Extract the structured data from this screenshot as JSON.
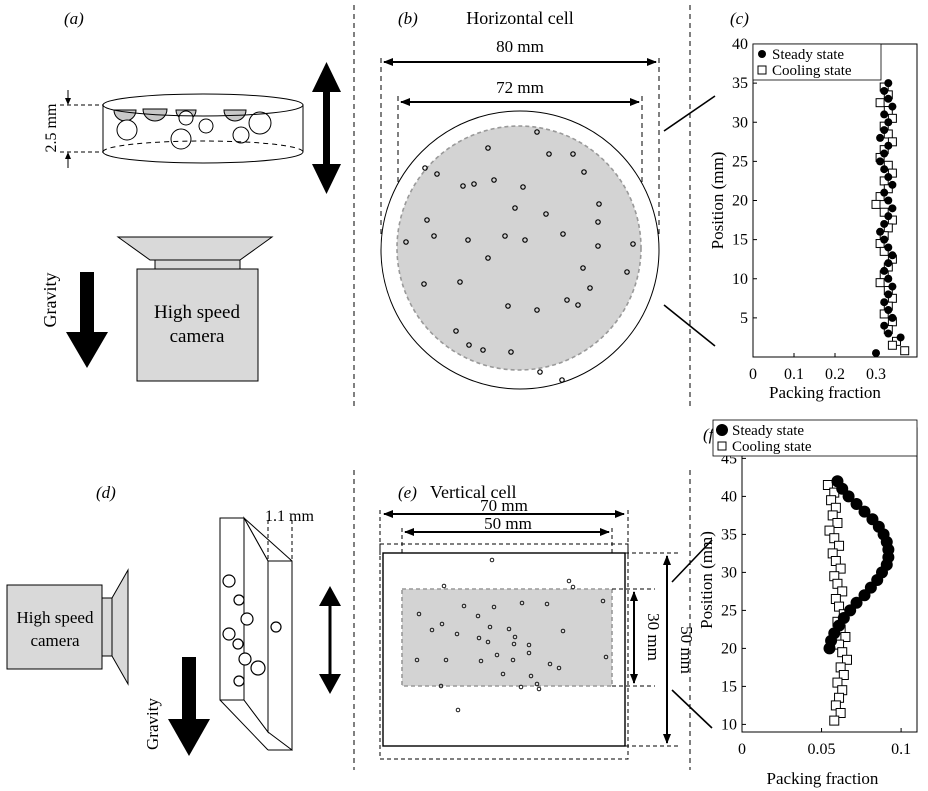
{
  "panels": {
    "a": {
      "label": "(a)",
      "thickness": "2.5 mm",
      "gravity": "Gravity",
      "camera": [
        "High speed",
        "camera"
      ]
    },
    "b": {
      "label": "(b)",
      "title": "Horizontal cell",
      "outer_dim": "80 mm",
      "inner_dim": "72 mm"
    },
    "c": {
      "label": "(c)"
    },
    "d": {
      "label": "(d)",
      "thickness": "1.1 mm",
      "gravity": "Gravity",
      "camera": [
        "High speed",
        "camera"
      ]
    },
    "e": {
      "label": "(e)",
      "title": "Vertical cell",
      "outer_width": "70 mm",
      "inner_width": "50 mm",
      "outer_height": "50 mm",
      "inner_height": "30 mm"
    },
    "f": {
      "label": "(f)"
    }
  },
  "colors": {
    "fill_gray": "#d3d3d3",
    "camera_gray": "#d9d9d9",
    "dash_gray": "#999999"
  },
  "chart_data": [
    {
      "type": "scatter",
      "panel": "c",
      "xlabel": "Packing fraction",
      "ylabel": "Position (mm)",
      "xlim": [
        0,
        0.4
      ],
      "ylim": [
        0,
        40
      ],
      "xticks": [
        "0",
        "0.1",
        "0.2",
        "0.3"
      ],
      "yticks": [
        "5",
        "10",
        "15",
        "20",
        "25",
        "30",
        "35",
        "40"
      ],
      "legend": "top-right",
      "series": [
        {
          "name": "Steady state",
          "marker": "filled-circle",
          "x": [
            0.33,
            0.32,
            0.33,
            0.34,
            0.32,
            0.33,
            0.32,
            0.31,
            0.33,
            0.32,
            0.31,
            0.32,
            0.33,
            0.34,
            0.32,
            0.33,
            0.34,
            0.33,
            0.32,
            0.31,
            0.32,
            0.33,
            0.34,
            0.33,
            0.32,
            0.33,
            0.34,
            0.33,
            0.32,
            0.33,
            0.34,
            0.32,
            0.33,
            0.3,
            0.36
          ],
          "y": [
            35,
            34,
            33,
            32,
            31,
            30,
            29,
            28,
            27,
            26,
            25,
            24,
            23,
            22,
            21,
            20,
            19,
            18,
            17,
            16,
            15,
            14,
            13,
            12,
            11,
            10,
            9,
            8,
            7,
            6,
            5,
            4,
            3,
            0.5,
            2.5
          ]
        },
        {
          "name": "Cooling state",
          "marker": "open-square",
          "x": [
            0.32,
            0.33,
            0.31,
            0.33,
            0.34,
            0.32,
            0.33,
            0.34,
            0.32,
            0.31,
            0.33,
            0.34,
            0.32,
            0.33,
            0.31,
            0.3,
            0.32,
            0.34,
            0.33,
            0.32,
            0.31,
            0.32,
            0.34,
            0.33,
            0.32,
            0.31,
            0.33,
            0.34,
            0.33,
            0.32,
            0.34,
            0.33,
            0.35,
            0.37,
            0.34
          ],
          "y": [
            34.5,
            33.5,
            32.5,
            31.5,
            30.5,
            29.5,
            28.5,
            27.5,
            26.5,
            25.5,
            24.5,
            23.5,
            22.5,
            21.5,
            20.5,
            19.5,
            18.5,
            17.5,
            16.5,
            15.5,
            14.5,
            13.5,
            12.5,
            11.5,
            10.5,
            9.5,
            8.5,
            7.5,
            6.5,
            5.5,
            4.5,
            3.5,
            2,
            0.8,
            1.5
          ]
        }
      ]
    },
    {
      "type": "scatter",
      "panel": "f",
      "xlabel": "Packing fraction",
      "ylabel": "Position (mm)",
      "xlim": [
        0,
        0.11
      ],
      "ylim": [
        9,
        49
      ],
      "xticks": [
        "0",
        "0.05",
        "0.1"
      ],
      "yticks": [
        "10",
        "15",
        "20",
        "25",
        "30",
        "35",
        "40",
        "45"
      ],
      "legend": "top-right",
      "series": [
        {
          "name": "Steady state",
          "marker": "filled-circle",
          "x": [
            0.06,
            0.063,
            0.067,
            0.072,
            0.077,
            0.082,
            0.086,
            0.089,
            0.091,
            0.092,
            0.092,
            0.091,
            0.088,
            0.085,
            0.081,
            0.077,
            0.072,
            0.068,
            0.064,
            0.061,
            0.058,
            0.056,
            0.055
          ],
          "y": [
            42,
            41,
            40,
            39,
            38,
            37,
            36,
            35,
            34,
            33,
            32,
            31,
            30,
            29,
            28,
            27,
            26,
            25,
            24,
            23,
            22,
            21,
            20
          ]
        },
        {
          "name": "Cooling state",
          "marker": "open-square",
          "x": [
            0.054,
            0.058,
            0.056,
            0.059,
            0.057,
            0.06,
            0.055,
            0.058,
            0.061,
            0.057,
            0.059,
            0.062,
            0.058,
            0.06,
            0.063,
            0.059,
            0.061,
            0.064,
            0.06,
            0.062,
            0.065,
            0.061,
            0.063,
            0.066,
            0.062,
            0.064,
            0.06,
            0.063,
            0.061,
            0.059,
            0.062,
            0.058
          ],
          "y": [
            41.5,
            40.5,
            39.5,
            38.5,
            37.5,
            36.5,
            35.5,
            34.5,
            33.5,
            32.5,
            31.5,
            30.5,
            29.5,
            28.5,
            27.5,
            26.5,
            25.5,
            24.5,
            23.5,
            22.5,
            21.5,
            20.5,
            19.5,
            18.5,
            17.5,
            16.5,
            15.5,
            14.5,
            13.5,
            12.5,
            11.5,
            10.5
          ]
        }
      ]
    }
  ]
}
